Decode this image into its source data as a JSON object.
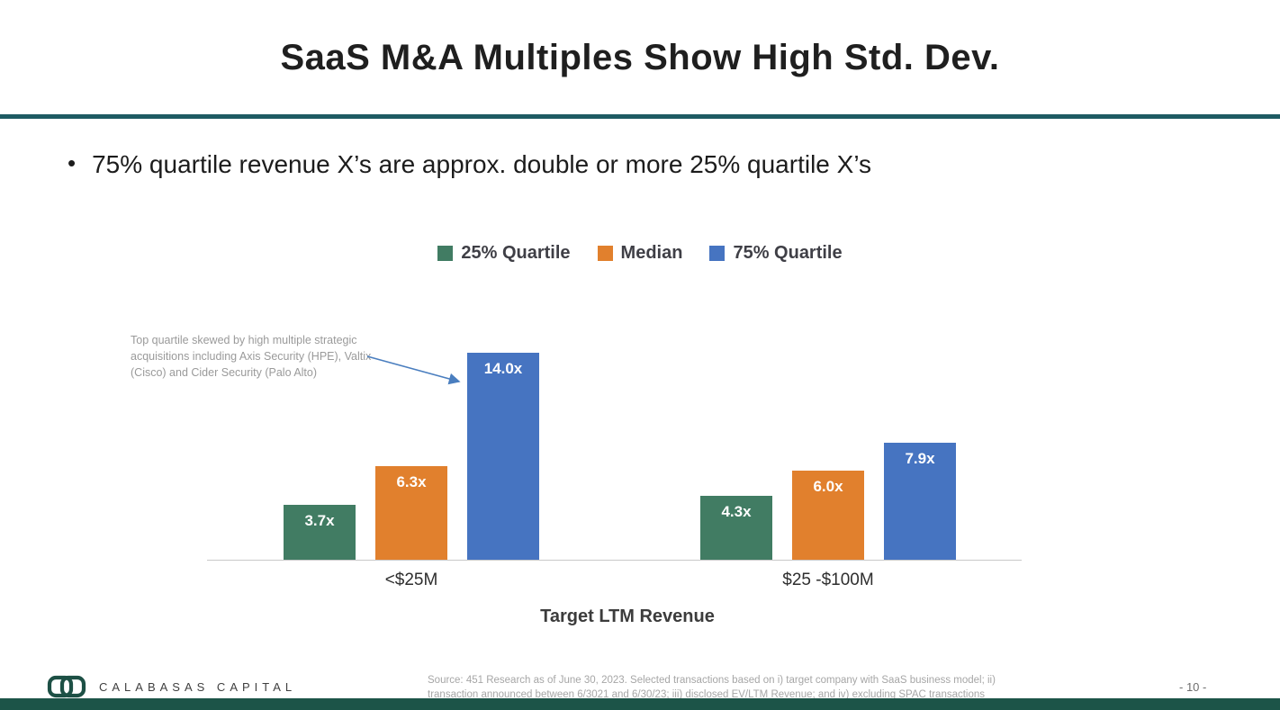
{
  "slide": {
    "title": "SaaS M&A Multiples Show High Std. Dev.",
    "bullet_marker": "•",
    "bullet_text": "75% quartile revenue X’s are approx. double or more 25% quartile X’s",
    "page_number": "- 10 -"
  },
  "annotation": {
    "text": "Top quartile skewed by high multiple strategic acquisitions including Axis Security (HPE), Valtix (Cisco) and Cider Security (Palo Alto)"
  },
  "footer": {
    "logo_text": "CALABASAS CAPITAL",
    "source_text": "Source: 451 Research as of June 30, 2023. Selected transactions based on i) target company with SaaS business model; ii) transaction announced between 6/3021 and 6/30/23; iii) disclosed EV/LTM Revenue; and iv) excluding SPAC transactions"
  },
  "chart_data": {
    "type": "bar",
    "categories": [
      "<$25M",
      "$25 -$100M"
    ],
    "series": [
      {
        "name": "25% Quartile",
        "color": "#417C63",
        "values": [
          3.7,
          4.3
        ],
        "labels": [
          "3.7x",
          "4.3x"
        ]
      },
      {
        "name": "Median",
        "color": "#E1802D",
        "values": [
          6.3,
          6.0
        ],
        "labels": [
          "6.3x",
          "6.0x"
        ]
      },
      {
        "name": "75% Quartile",
        "color": "#4674C1",
        "values": [
          14.0,
          7.9
        ],
        "labels": [
          "14.0x",
          "7.9x"
        ]
      }
    ],
    "xlabel": "Target LTM Revenue",
    "ylim": [
      0,
      14.6
    ],
    "grid": false,
    "legend_position": "top-center"
  },
  "colors": {
    "accent_divider": "#1E5B63",
    "bottom_bar": "#1C5448",
    "logo_green": "#1D5045",
    "arrow_blue": "#4A7EBF",
    "axis_line": "#C9C9C9",
    "value_label_text": "#FFFFFF"
  }
}
